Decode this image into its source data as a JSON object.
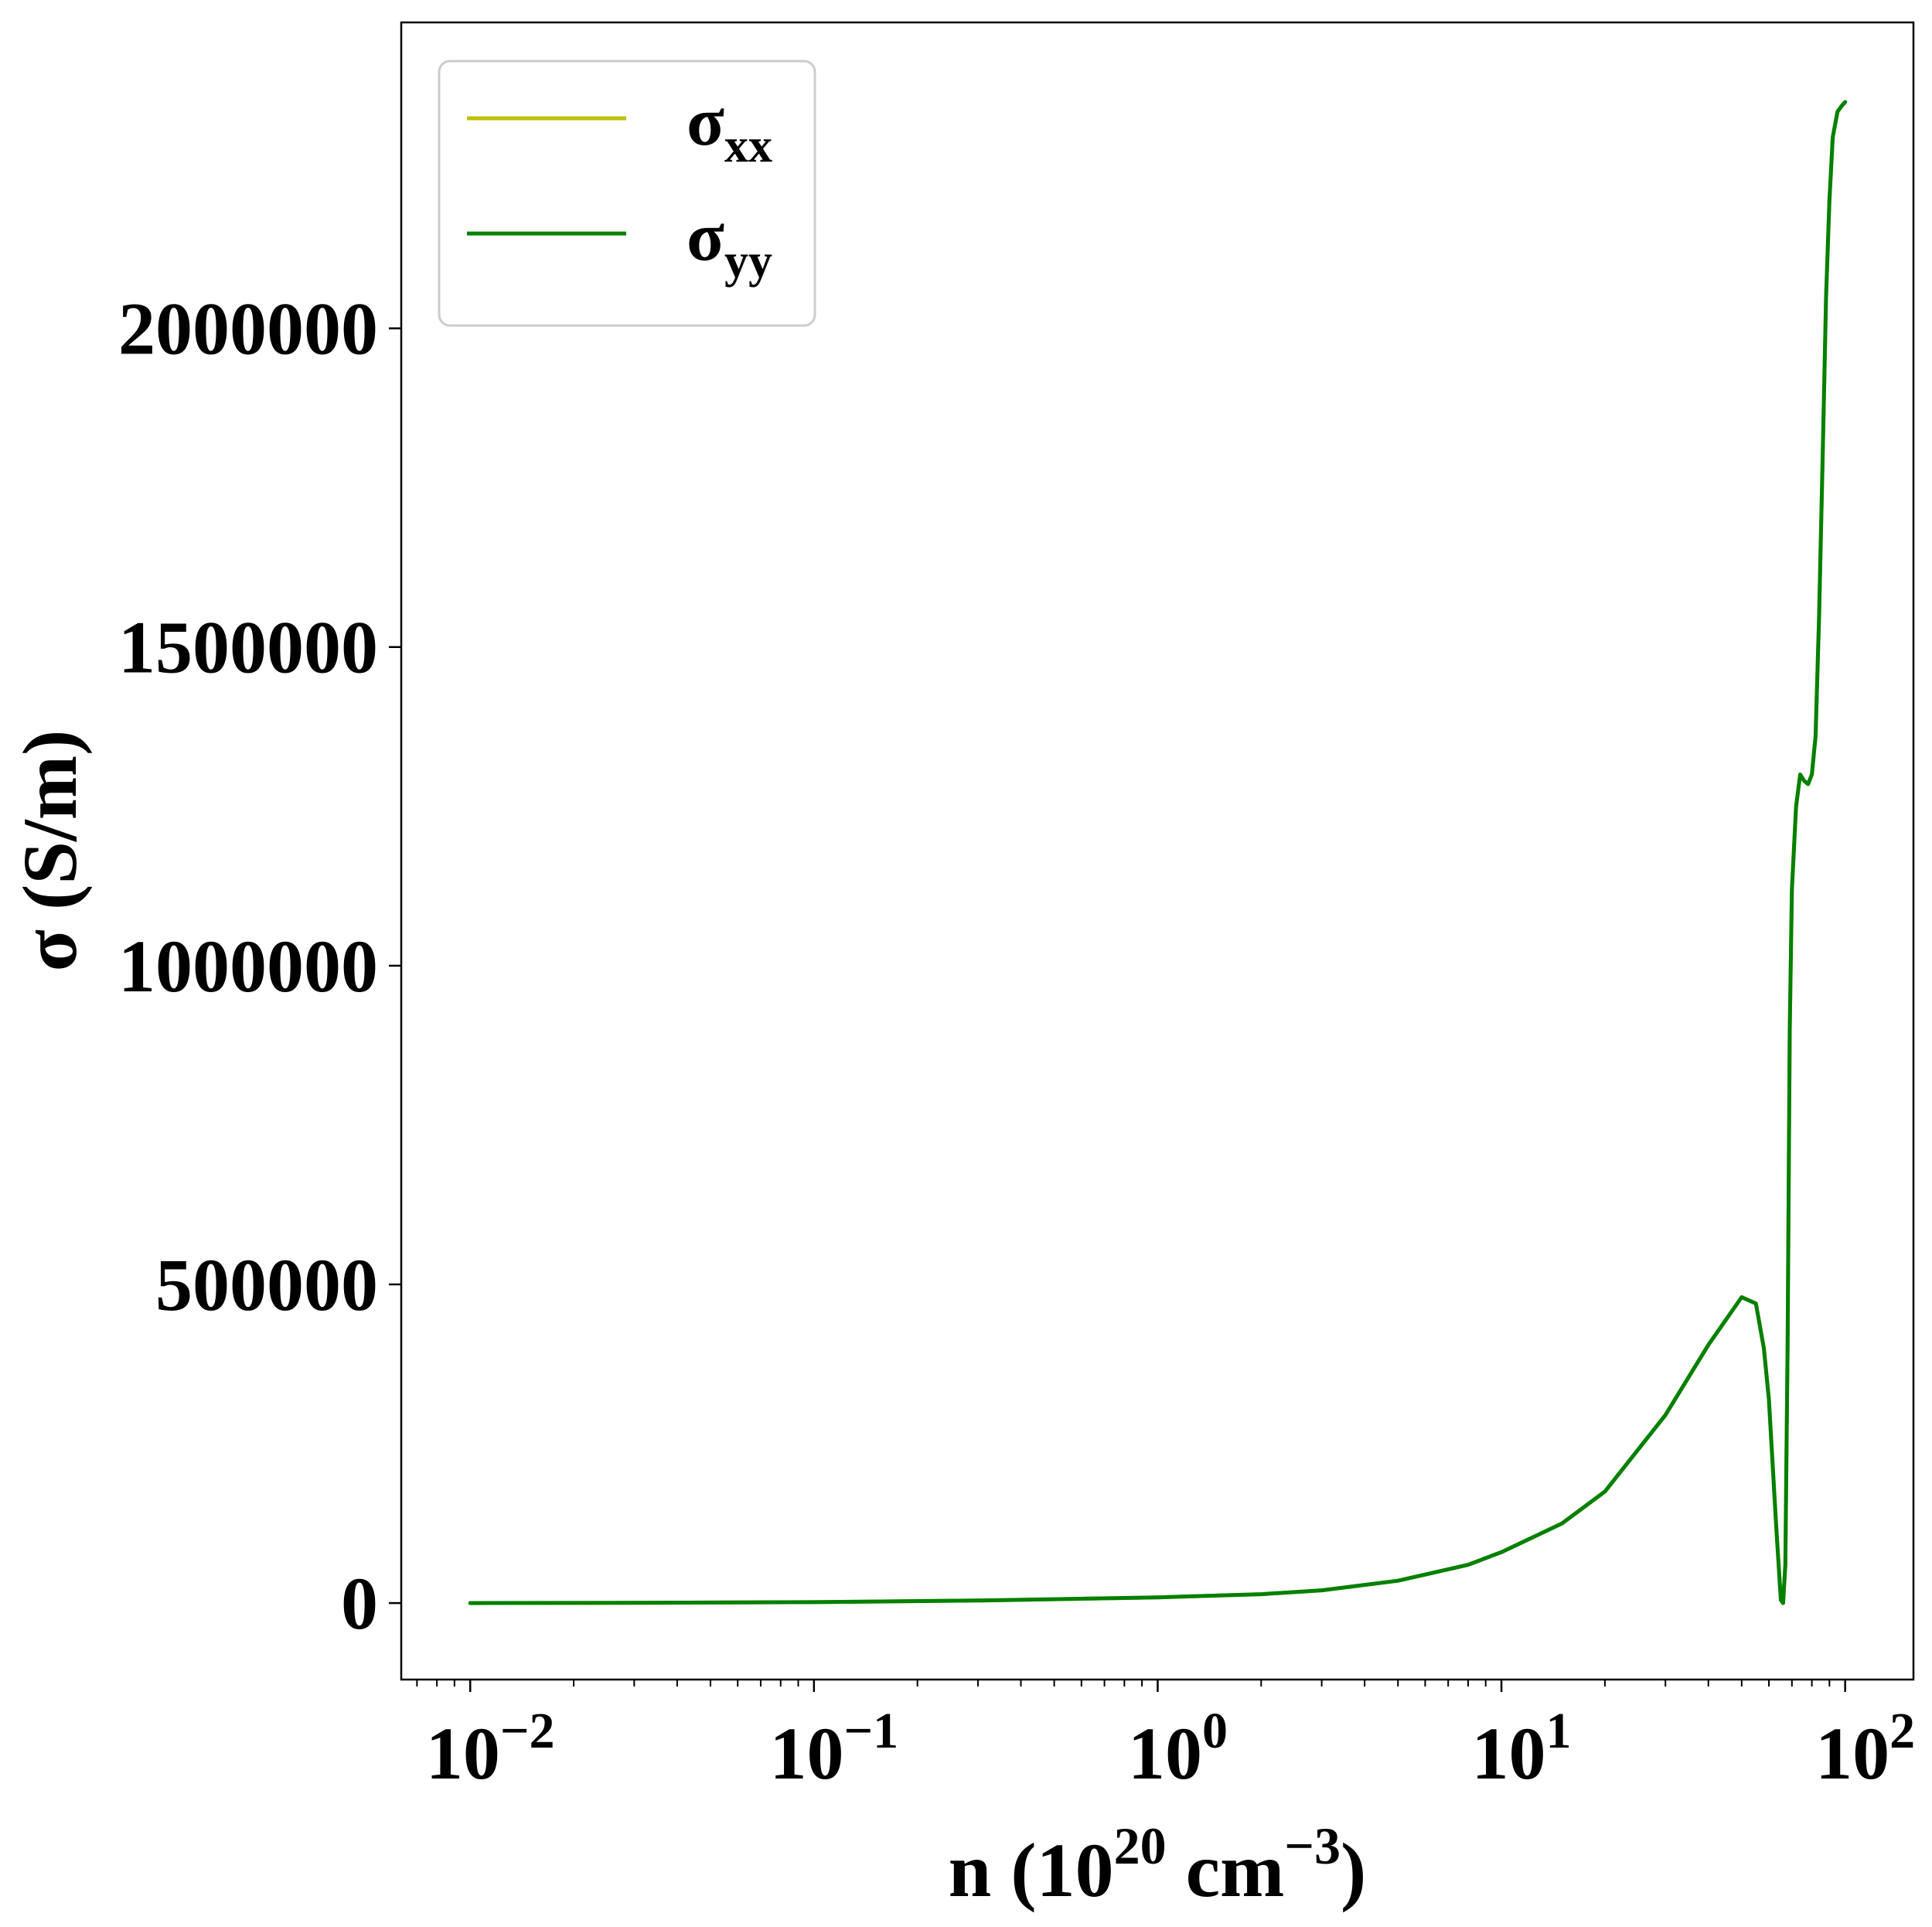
{
  "chart_data": {
    "type": "line",
    "xlabel": {
      "base": "n (10",
      "sup1": "20",
      "mid": " cm",
      "sup2": "−3",
      "end": ")"
    },
    "ylabel": "σ (S/m)",
    "xscale": "log",
    "xlim": [
      0.0063,
      158
    ],
    "ylim": [
      -120000,
      2480000
    ],
    "grid": false,
    "legend_position": "upper left",
    "x_ticks": [
      {
        "value": 0.01,
        "base": "10",
        "exp": "−2"
      },
      {
        "value": 0.1,
        "base": "10",
        "exp": "−1"
      },
      {
        "value": 1,
        "base": "10",
        "exp": "0"
      },
      {
        "value": 10,
        "base": "10",
        "exp": "1"
      },
      {
        "value": 100,
        "base": "10",
        "exp": "2"
      }
    ],
    "y_ticks": [
      {
        "value": 0,
        "label": "0"
      },
      {
        "value": 500000,
        "label": "500000"
      },
      {
        "value": 1000000,
        "label": "1000000"
      },
      {
        "value": 1500000,
        "label": "1500000"
      },
      {
        "value": 2000000,
        "label": "2000000"
      }
    ],
    "series": [
      {
        "name": {
          "base": "σ",
          "sub": "xx"
        },
        "color": "#bfbf00",
        "x": [
          0.01,
          0.03,
          0.1,
          0.3,
          1,
          2,
          3,
          5,
          8,
          10,
          15,
          20,
          30,
          40,
          50,
          55,
          58,
          60,
          63,
          65,
          66,
          67,
          68,
          69,
          70,
          72,
          74,
          76,
          78,
          80,
          82,
          84,
          86,
          88,
          90,
          92,
          95,
          98,
          100
        ],
        "y": [
          0,
          300,
          1500,
          4000,
          9000,
          14000,
          20000,
          35000,
          60000,
          80000,
          125000,
          175000,
          295000,
          405000,
          480000,
          470000,
          400000,
          320000,
          120000,
          5000,
          0,
          60000,
          400000,
          900000,
          1120000,
          1250000,
          1300000,
          1290000,
          1285000,
          1300000,
          1360000,
          1550000,
          1800000,
          2050000,
          2200000,
          2300000,
          2340000,
          2350000,
          2355000
        ]
      },
      {
        "name": {
          "base": "σ",
          "sub": "yy"
        },
        "color": "#008000",
        "x": [
          0.01,
          0.03,
          0.1,
          0.3,
          1,
          2,
          3,
          5,
          8,
          10,
          15,
          20,
          30,
          40,
          50,
          55,
          58,
          60,
          63,
          65,
          66,
          67,
          68,
          69,
          70,
          72,
          74,
          76,
          78,
          80,
          82,
          84,
          86,
          88,
          90,
          92,
          95,
          98,
          100
        ],
        "y": [
          0,
          300,
          1500,
          4000,
          9000,
          14000,
          20000,
          35000,
          60000,
          80000,
          125000,
          175000,
          295000,
          405000,
          480000,
          470000,
          400000,
          320000,
          120000,
          5000,
          0,
          60000,
          400000,
          900000,
          1120000,
          1250000,
          1300000,
          1290000,
          1285000,
          1300000,
          1360000,
          1550000,
          1800000,
          2050000,
          2200000,
          2300000,
          2340000,
          2350000,
          2355000
        ]
      }
    ]
  }
}
